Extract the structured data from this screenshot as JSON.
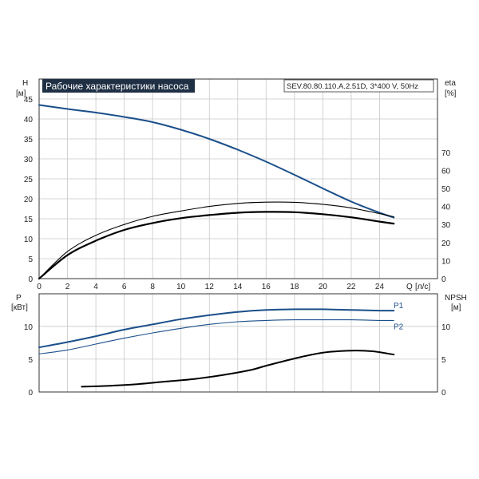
{
  "header": {
    "title": "Рабочие характеристики насоса",
    "model": "SEV.80.80.110.A.2.51D, 3*400 V, 50Hz"
  },
  "colors": {
    "title_bg": "#1f2f44",
    "title_fg": "#ffffff",
    "head_curve": "#1a4f8a",
    "p1_curve": "#1a4f8a",
    "p2_curve": "#1a4f8a",
    "eta_curves": "#000000",
    "npsh_curve": "#000000",
    "grid": "#c8c8c8"
  },
  "chart_data": [
    {
      "type": "line",
      "name": "upper",
      "x_label": "Q",
      "x_unit": "[л/с]",
      "x_ticks": [
        "0",
        "2",
        "4",
        "6",
        "8",
        "10",
        "12",
        "14",
        "16",
        "18",
        "20",
        "22",
        "24"
      ],
      "xlim": [
        0,
        26
      ],
      "y_left_label": "H",
      "y_left_unit": "[м]",
      "y_left_ticks": [
        "0",
        "5",
        "10",
        "15",
        "20",
        "25",
        "30",
        "35",
        "40",
        "45"
      ],
      "ylim_left": [
        0,
        50
      ],
      "y_right_label": "eta",
      "y_right_unit": "[%]",
      "y_right_ticks": [
        "0",
        "10",
        "20",
        "30",
        "40",
        "50",
        "60",
        "70"
      ],
      "ylim_right": [
        0,
        100
      ],
      "grid": true,
      "series": [
        {
          "key": "H",
          "axis": "left",
          "x": [
            0,
            2,
            4,
            6,
            8,
            10,
            12,
            14,
            16,
            18,
            20,
            22,
            24,
            25
          ],
          "values": [
            43.5,
            42.5,
            41.6,
            40.5,
            39.2,
            37.3,
            35.0,
            32.3,
            29.3,
            26.0,
            22.6,
            19.3,
            16.5,
            15.3
          ]
        },
        {
          "key": "eta_thin",
          "axis": "right",
          "x": [
            0,
            2,
            4,
            6,
            8,
            10,
            12,
            14,
            16,
            18,
            20,
            22,
            24,
            25
          ],
          "values": [
            0,
            15,
            24,
            30,
            34.5,
            37.5,
            40,
            41.7,
            42.4,
            42.3,
            41.2,
            39.2,
            36.0,
            34.3
          ]
        },
        {
          "key": "eta_thick",
          "axis": "right",
          "x": [
            0,
            2,
            4,
            6,
            8,
            10,
            12,
            14,
            16,
            18,
            20,
            22,
            24,
            25
          ],
          "values": [
            0,
            13,
            21,
            27,
            30.8,
            33.5,
            35.2,
            36.5,
            37.0,
            36.8,
            35.7,
            34.0,
            31.6,
            30.5
          ]
        }
      ]
    },
    {
      "type": "line",
      "name": "lower",
      "y_left_label": "P",
      "y_left_unit": "[кВт]",
      "y_left_ticks": [
        "0",
        "5",
        "10"
      ],
      "ylim_left": [
        0,
        15
      ],
      "y_right_label": "NPSH",
      "y_right_unit": "[м]",
      "y_right_ticks": [
        "0",
        "5",
        "10"
      ],
      "ylim_right": [
        0,
        15
      ],
      "grid": true,
      "series": [
        {
          "name": "P1",
          "axis": "left",
          "x": [
            0,
            2,
            4,
            6,
            8,
            10,
            12,
            14,
            16,
            18,
            20,
            22,
            24,
            25
          ],
          "values": [
            6.8,
            7.6,
            8.5,
            9.5,
            10.3,
            11.1,
            11.7,
            12.2,
            12.5,
            12.6,
            12.6,
            12.5,
            12.4,
            12.4
          ]
        },
        {
          "name": "P2",
          "axis": "left",
          "x": [
            0,
            2,
            4,
            6,
            8,
            10,
            12,
            14,
            16,
            18,
            20,
            22,
            24,
            25
          ],
          "values": [
            5.8,
            6.4,
            7.3,
            8.2,
            9.0,
            9.7,
            10.3,
            10.7,
            10.9,
            11.0,
            11.0,
            11.0,
            10.9,
            10.9
          ]
        },
        {
          "key": "NPSH",
          "axis": "right",
          "x": [
            3,
            5,
            7,
            9,
            11,
            13,
            15,
            16,
            18,
            20,
            22,
            23.5,
            25
          ],
          "values": [
            0.8,
            0.95,
            1.2,
            1.6,
            2.0,
            2.6,
            3.4,
            4.0,
            5.1,
            6.0,
            6.3,
            6.2,
            5.7
          ]
        }
      ]
    }
  ]
}
